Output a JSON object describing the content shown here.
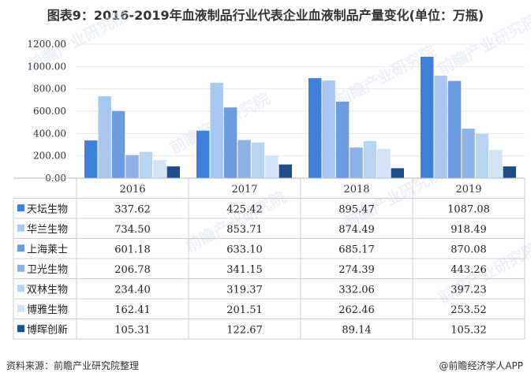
{
  "title": "图表9：2016-2019年血液制品行业代表企业血液制品产量变化(单位：万瓶)",
  "source": "资料来源：前瞻产业研究院整理",
  "credit": "@前瞻经济学人APP",
  "watermark": "前瞻产业研究院",
  "chart_data": {
    "type": "bar",
    "categories": [
      "2016",
      "2017",
      "2018",
      "2019"
    ],
    "ylim": [
      0,
      1200
    ],
    "yticks": [
      "1200.00",
      "1000.00",
      "800.00",
      "600.00",
      "400.00",
      "200.00",
      "0.00"
    ],
    "grid": true,
    "legend": "table-below",
    "series": [
      {
        "name": "天坛生物",
        "color": "#3d7fd9",
        "values": [
          337.62,
          425.42,
          895.47,
          1087.08
        ],
        "labels": [
          "337.62",
          "425.42",
          "895.47",
          "1087.08"
        ]
      },
      {
        "name": "华兰生物",
        "color": "#a9c8f0",
        "values": [
          734.5,
          853.71,
          874.49,
          918.49
        ],
        "labels": [
          "734.50",
          "853.71",
          "874.49",
          "918.49"
        ]
      },
      {
        "name": "上海莱士",
        "color": "#6b9be0",
        "values": [
          601.18,
          633.1,
          685.17,
          870.08
        ],
        "labels": [
          "601.18",
          "633.10",
          "685.17",
          "870.08"
        ]
      },
      {
        "name": "卫光生物",
        "color": "#8fb2e6",
        "values": [
          206.78,
          341.15,
          274.39,
          443.26
        ],
        "labels": [
          "206.78",
          "341.15",
          "274.39",
          "443.26"
        ]
      },
      {
        "name": "双林生物",
        "color": "#b9d3f2",
        "values": [
          234.4,
          319.37,
          332.06,
          397.23
        ],
        "labels": [
          "234.40",
          "319.37",
          "332.06",
          "397.23"
        ]
      },
      {
        "name": "博雅生物",
        "color": "#d3e3f7",
        "values": [
          162.41,
          201.51,
          262.46,
          253.52
        ],
        "labels": [
          "162.41",
          "201.51",
          "262.46",
          "253.52"
        ]
      },
      {
        "name": "博晖创新",
        "color": "#1f4e8c",
        "values": [
          105.31,
          122.67,
          89.14,
          105.32
        ],
        "labels": [
          "105.31",
          "122.67",
          "89.14",
          "105.32"
        ]
      }
    ]
  }
}
